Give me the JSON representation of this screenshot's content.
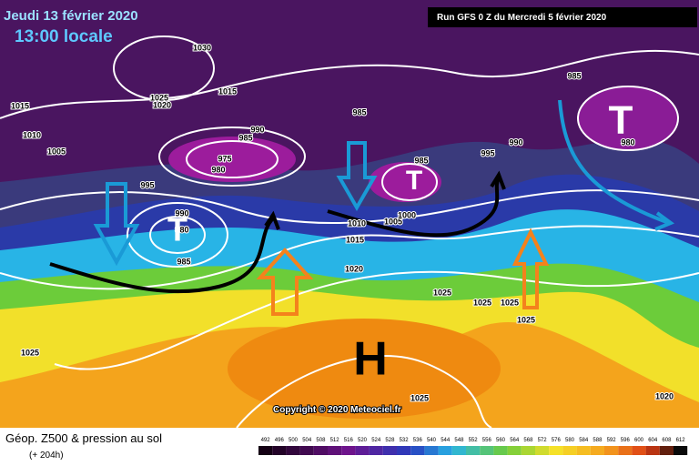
{
  "header": {
    "date": "Jeudi 13 février 2020",
    "time": "13:00 locale",
    "run": "Run GFS 0 Z du Mercredi 5 février 2020"
  },
  "copyright": "Copyright © 2020 Meteociel.fr",
  "footer": {
    "title": "Géop. Z500 & pression au sol",
    "lead": "(+ 204h)"
  },
  "scale": [
    492,
    496,
    500,
    504,
    508,
    512,
    516,
    520,
    524,
    528,
    532,
    536,
    540,
    544,
    548,
    552,
    556,
    560,
    564,
    568,
    572,
    576,
    580,
    584,
    588,
    592,
    596,
    600,
    604,
    608,
    612
  ],
  "symbols": [
    "T",
    "T",
    "T",
    "H"
  ],
  "isobars": [
    "1030",
    "1025",
    "1020",
    "1015",
    "1015",
    "1010",
    "1005",
    "995",
    "990",
    "985",
    "975",
    "980",
    "985",
    "985",
    "995",
    "990",
    "985",
    "980",
    "990",
    "980",
    "985",
    "1005",
    "1000",
    "1010",
    "1015",
    "1020",
    "1025",
    "1025",
    "1025",
    "1025",
    "1025",
    "1020",
    "1025"
  ]
}
